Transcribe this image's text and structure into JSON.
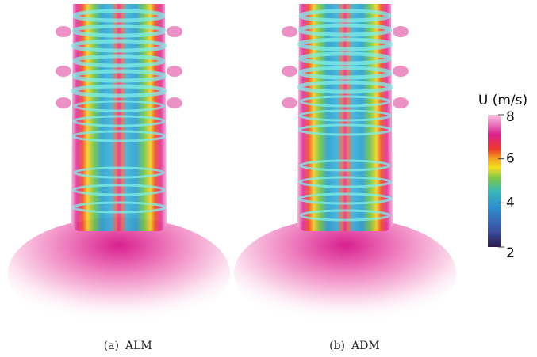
{
  "panels": [
    {
      "label": "(a)",
      "name": "ALM"
    },
    {
      "label": "(b)",
      "name": "ADM"
    }
  ],
  "colorbar": {
    "title": "U (m/s)",
    "lim": [
      2,
      8
    ],
    "ticks": [
      2,
      4,
      6,
      8
    ]
  }
}
